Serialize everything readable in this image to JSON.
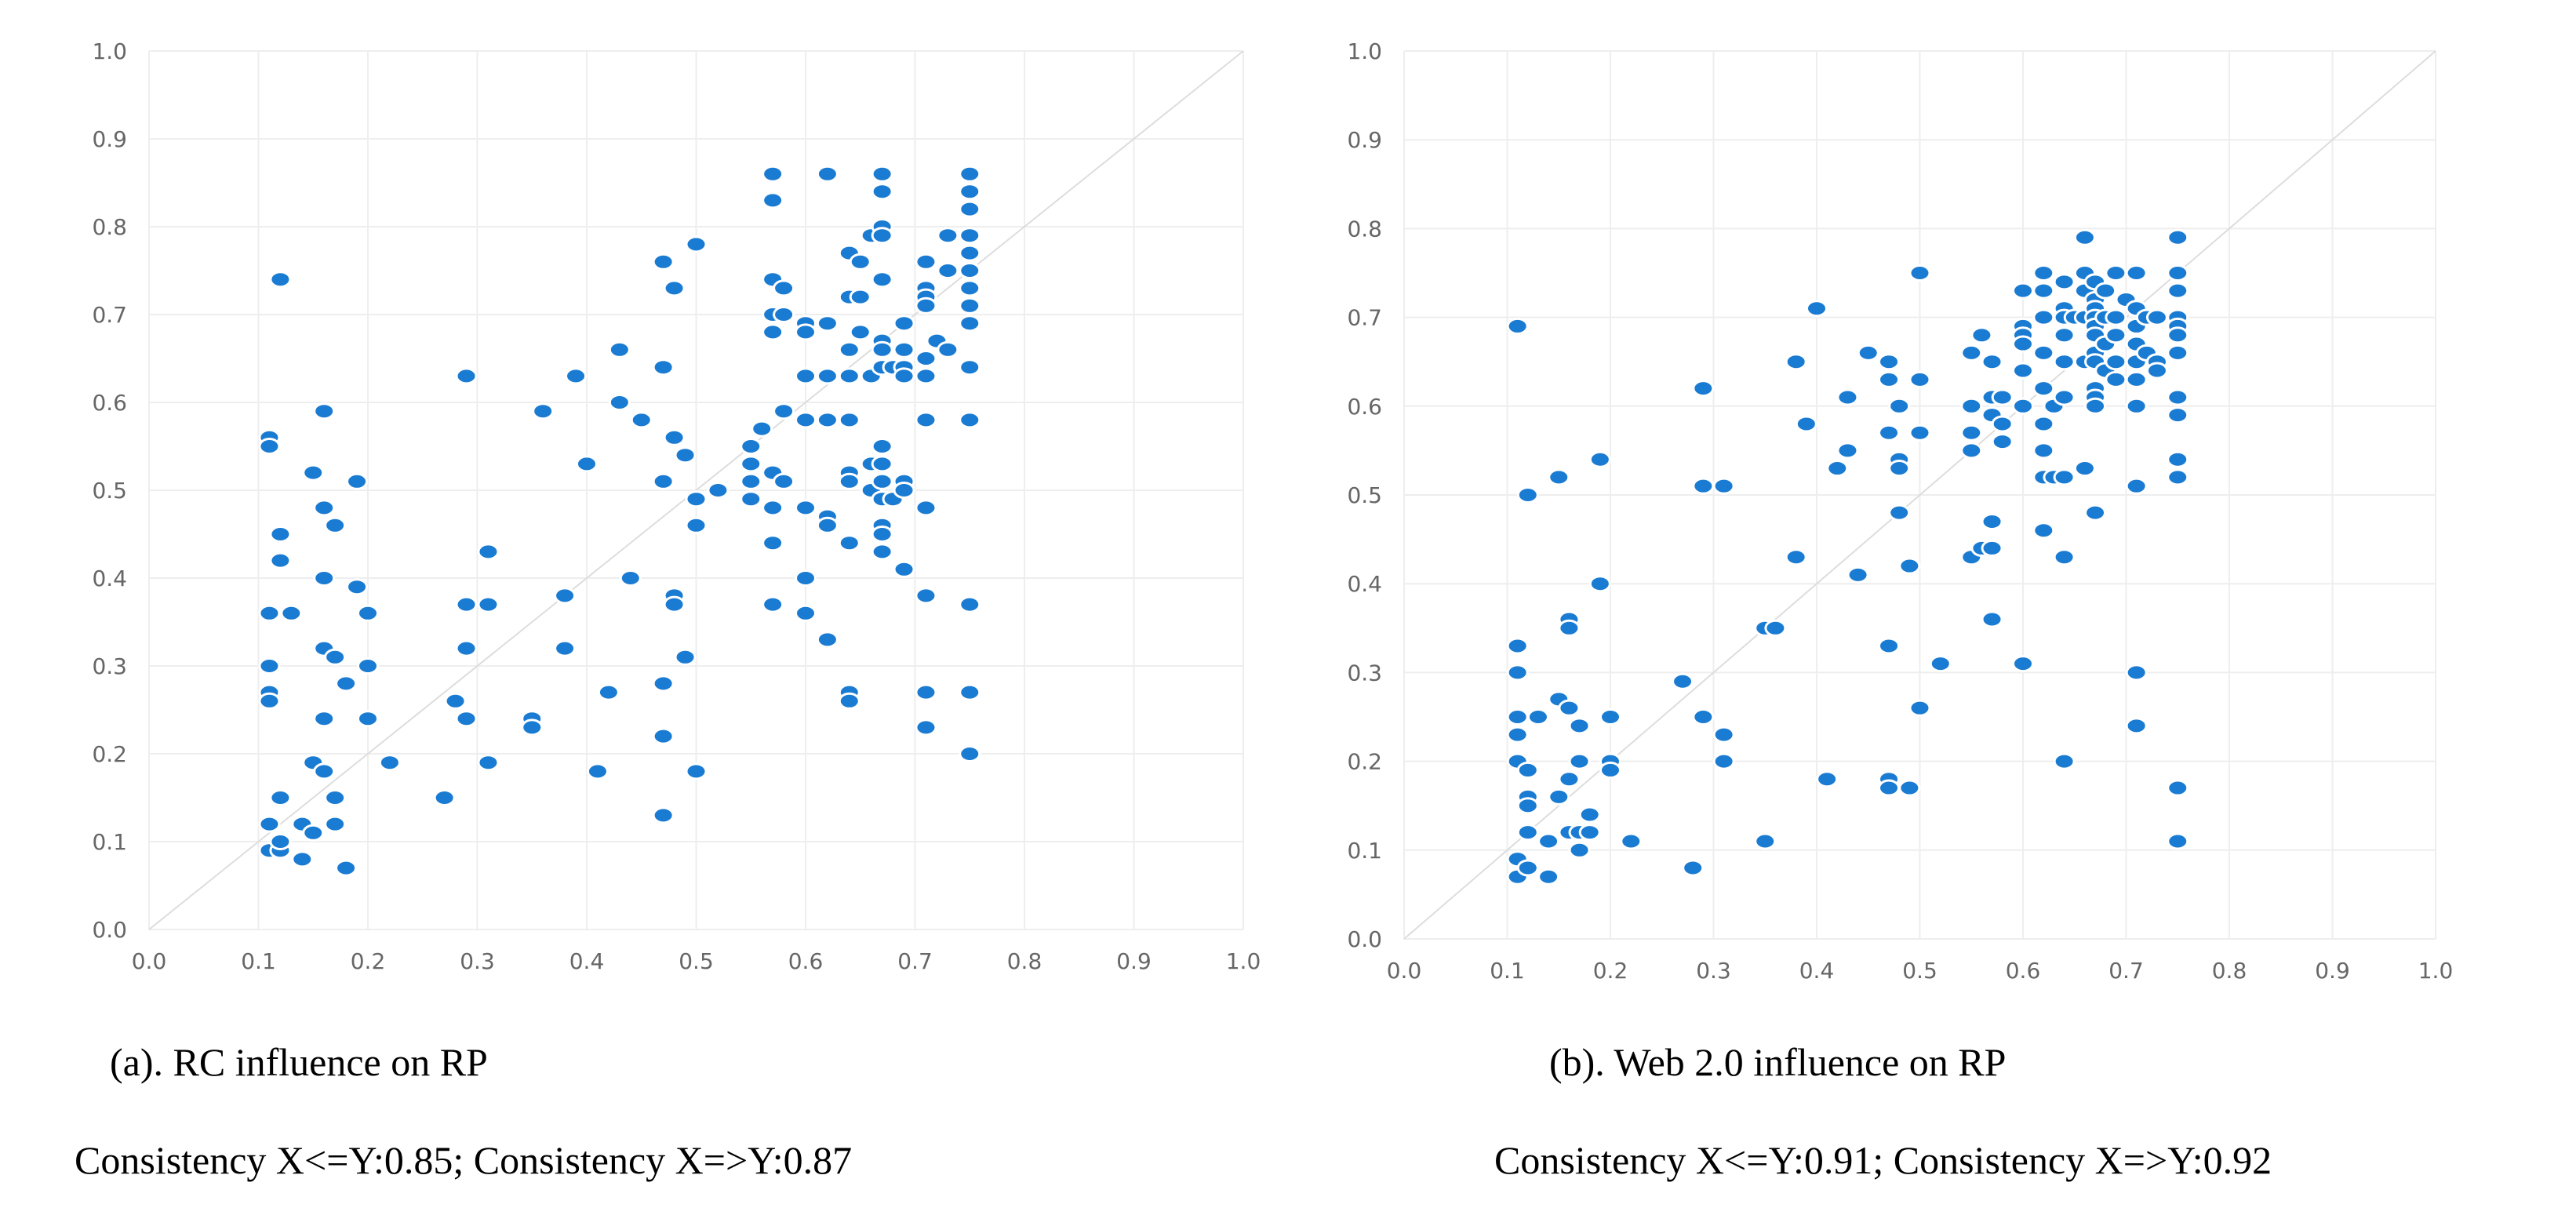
{
  "chart_data": [
    {
      "type": "scatter",
      "title": "(a). RC influence on RP",
      "subtitle": "Consistency X<=Y:0.85; Consistency X=>Y:0.87",
      "xlim": [
        0,
        1
      ],
      "ylim": [
        0,
        1
      ],
      "x_ticks": [
        "0.0",
        "0.1",
        "0.2",
        "0.3",
        "0.4",
        "0.5",
        "0.6",
        "0.7",
        "0.8",
        "0.9",
        "1.0"
      ],
      "y_ticks": [
        "0.0",
        "0.1",
        "0.2",
        "0.3",
        "0.4",
        "0.5",
        "0.6",
        "0.7",
        "0.8",
        "0.9",
        "1.0"
      ],
      "grid": true,
      "reference_line": "y = x",
      "color": "#1a7bd2",
      "points": [
        [
          0.11,
          0.56
        ],
        [
          0.11,
          0.55
        ],
        [
          0.12,
          0.74
        ],
        [
          0.11,
          0.36
        ],
        [
          0.11,
          0.3
        ],
        [
          0.11,
          0.27
        ],
        [
          0.11,
          0.26
        ],
        [
          0.11,
          0.12
        ],
        [
          0.11,
          0.09
        ],
        [
          0.12,
          0.09
        ],
        [
          0.12,
          0.1
        ],
        [
          0.12,
          0.15
        ],
        [
          0.12,
          0.45
        ],
        [
          0.12,
          0.42
        ],
        [
          0.13,
          0.36
        ],
        [
          0.14,
          0.12
        ],
        [
          0.14,
          0.08
        ],
        [
          0.15,
          0.52
        ],
        [
          0.15,
          0.19
        ],
        [
          0.15,
          0.11
        ],
        [
          0.16,
          0.59
        ],
        [
          0.16,
          0.48
        ],
        [
          0.16,
          0.4
        ],
        [
          0.16,
          0.32
        ],
        [
          0.16,
          0.24
        ],
        [
          0.16,
          0.18
        ],
        [
          0.17,
          0.46
        ],
        [
          0.17,
          0.31
        ],
        [
          0.17,
          0.15
        ],
        [
          0.17,
          0.12
        ],
        [
          0.18,
          0.28
        ],
        [
          0.18,
          0.07
        ],
        [
          0.19,
          0.51
        ],
        [
          0.19,
          0.39
        ],
        [
          0.2,
          0.36
        ],
        [
          0.2,
          0.3
        ],
        [
          0.2,
          0.24
        ],
        [
          0.22,
          0.19
        ],
        [
          0.27,
          0.15
        ],
        [
          0.28,
          0.26
        ],
        [
          0.29,
          0.63
        ],
        [
          0.29,
          0.37
        ],
        [
          0.29,
          0.32
        ],
        [
          0.29,
          0.24
        ],
        [
          0.31,
          0.43
        ],
        [
          0.31,
          0.37
        ],
        [
          0.31,
          0.19
        ],
        [
          0.35,
          0.24
        ],
        [
          0.35,
          0.23
        ],
        [
          0.36,
          0.59
        ],
        [
          0.38,
          0.38
        ],
        [
          0.38,
          0.32
        ],
        [
          0.39,
          0.63
        ],
        [
          0.4,
          0.53
        ],
        [
          0.41,
          0.18
        ],
        [
          0.42,
          0.27
        ],
        [
          0.43,
          0.66
        ],
        [
          0.43,
          0.6
        ],
        [
          0.44,
          0.4
        ],
        [
          0.45,
          0.58
        ],
        [
          0.47,
          0.76
        ],
        [
          0.47,
          0.64
        ],
        [
          0.47,
          0.51
        ],
        [
          0.47,
          0.28
        ],
        [
          0.47,
          0.22
        ],
        [
          0.47,
          0.13
        ],
        [
          0.48,
          0.73
        ],
        [
          0.48,
          0.56
        ],
        [
          0.48,
          0.38
        ],
        [
          0.48,
          0.37
        ],
        [
          0.49,
          0.54
        ],
        [
          0.49,
          0.31
        ],
        [
          0.5,
          0.78
        ],
        [
          0.5,
          0.49
        ],
        [
          0.5,
          0.46
        ],
        [
          0.5,
          0.18
        ],
        [
          0.52,
          0.5
        ],
        [
          0.55,
          0.55
        ],
        [
          0.55,
          0.53
        ],
        [
          0.55,
          0.51
        ],
        [
          0.55,
          0.49
        ],
        [
          0.56,
          0.57
        ],
        [
          0.57,
          0.86
        ],
        [
          0.57,
          0.83
        ],
        [
          0.57,
          0.74
        ],
        [
          0.57,
          0.7
        ],
        [
          0.57,
          0.68
        ],
        [
          0.57,
          0.52
        ],
        [
          0.57,
          0.48
        ],
        [
          0.57,
          0.44
        ],
        [
          0.57,
          0.37
        ],
        [
          0.58,
          0.73
        ],
        [
          0.58,
          0.7
        ],
        [
          0.58,
          0.59
        ],
        [
          0.58,
          0.51
        ],
        [
          0.6,
          0.69
        ],
        [
          0.6,
          0.68
        ],
        [
          0.6,
          0.63
        ],
        [
          0.6,
          0.58
        ],
        [
          0.6,
          0.48
        ],
        [
          0.6,
          0.4
        ],
        [
          0.6,
          0.36
        ],
        [
          0.62,
          0.86
        ],
        [
          0.62,
          0.69
        ],
        [
          0.62,
          0.63
        ],
        [
          0.62,
          0.58
        ],
        [
          0.62,
          0.47
        ],
        [
          0.62,
          0.46
        ],
        [
          0.62,
          0.33
        ],
        [
          0.64,
          0.77
        ],
        [
          0.64,
          0.72
        ],
        [
          0.64,
          0.66
        ],
        [
          0.64,
          0.63
        ],
        [
          0.64,
          0.58
        ],
        [
          0.64,
          0.52
        ],
        [
          0.64,
          0.51
        ],
        [
          0.64,
          0.44
        ],
        [
          0.64,
          0.27
        ],
        [
          0.64,
          0.26
        ],
        [
          0.65,
          0.76
        ],
        [
          0.65,
          0.72
        ],
        [
          0.65,
          0.68
        ],
        [
          0.66,
          0.79
        ],
        [
          0.66,
          0.63
        ],
        [
          0.66,
          0.53
        ],
        [
          0.66,
          0.5
        ],
        [
          0.67,
          0.86
        ],
        [
          0.67,
          0.84
        ],
        [
          0.67,
          0.8
        ],
        [
          0.67,
          0.79
        ],
        [
          0.67,
          0.74
        ],
        [
          0.67,
          0.67
        ],
        [
          0.67,
          0.66
        ],
        [
          0.67,
          0.64
        ],
        [
          0.67,
          0.55
        ],
        [
          0.67,
          0.53
        ],
        [
          0.67,
          0.51
        ],
        [
          0.67,
          0.49
        ],
        [
          0.67,
          0.46
        ],
        [
          0.67,
          0.45
        ],
        [
          0.67,
          0.43
        ],
        [
          0.68,
          0.64
        ],
        [
          0.68,
          0.49
        ],
        [
          0.69,
          0.69
        ],
        [
          0.69,
          0.66
        ],
        [
          0.69,
          0.64
        ],
        [
          0.69,
          0.63
        ],
        [
          0.69,
          0.51
        ],
        [
          0.69,
          0.5
        ],
        [
          0.69,
          0.41
        ],
        [
          0.71,
          0.76
        ],
        [
          0.71,
          0.73
        ],
        [
          0.71,
          0.72
        ],
        [
          0.71,
          0.71
        ],
        [
          0.71,
          0.65
        ],
        [
          0.71,
          0.63
        ],
        [
          0.71,
          0.58
        ],
        [
          0.71,
          0.48
        ],
        [
          0.71,
          0.38
        ],
        [
          0.71,
          0.27
        ],
        [
          0.71,
          0.23
        ],
        [
          0.72,
          0.67
        ],
        [
          0.73,
          0.79
        ],
        [
          0.73,
          0.75
        ],
        [
          0.73,
          0.66
        ],
        [
          0.75,
          0.86
        ],
        [
          0.75,
          0.84
        ],
        [
          0.75,
          0.82
        ],
        [
          0.75,
          0.79
        ],
        [
          0.75,
          0.77
        ],
        [
          0.75,
          0.75
        ],
        [
          0.75,
          0.73
        ],
        [
          0.75,
          0.71
        ],
        [
          0.75,
          0.69
        ],
        [
          0.75,
          0.64
        ],
        [
          0.75,
          0.58
        ],
        [
          0.75,
          0.37
        ],
        [
          0.75,
          0.27
        ],
        [
          0.75,
          0.2
        ]
      ]
    },
    {
      "type": "scatter",
      "title": "(b). Web 2.0 influence on RP",
      "subtitle": "Consistency X<=Y:0.91; Consistency X=>Y:0.92",
      "xlim": [
        0,
        1
      ],
      "ylim": [
        0,
        1
      ],
      "x_ticks": [
        "0.0",
        "0.1",
        "0.2",
        "0.3",
        "0.4",
        "0.5",
        "0.6",
        "0.7",
        "0.8",
        "0.9",
        "1.0"
      ],
      "y_ticks": [
        "0.0",
        "0.1",
        "0.2",
        "0.3",
        "0.4",
        "0.5",
        "0.6",
        "0.7",
        "0.8",
        "0.9",
        "1.0"
      ],
      "grid": true,
      "reference_line": "y = x",
      "color": "#1a7bd2",
      "points": [
        [
          0.11,
          0.69
        ],
        [
          0.11,
          0.33
        ],
        [
          0.11,
          0.3
        ],
        [
          0.11,
          0.25
        ],
        [
          0.11,
          0.23
        ],
        [
          0.11,
          0.2
        ],
        [
          0.11,
          0.09
        ],
        [
          0.11,
          0.07
        ],
        [
          0.12,
          0.5
        ],
        [
          0.12,
          0.19
        ],
        [
          0.12,
          0.16
        ],
        [
          0.12,
          0.15
        ],
        [
          0.12,
          0.12
        ],
        [
          0.12,
          0.08
        ],
        [
          0.13,
          0.25
        ],
        [
          0.14,
          0.11
        ],
        [
          0.14,
          0.07
        ],
        [
          0.15,
          0.52
        ],
        [
          0.15,
          0.27
        ],
        [
          0.15,
          0.16
        ],
        [
          0.16,
          0.36
        ],
        [
          0.16,
          0.35
        ],
        [
          0.16,
          0.26
        ],
        [
          0.16,
          0.18
        ],
        [
          0.16,
          0.12
        ],
        [
          0.17,
          0.24
        ],
        [
          0.17,
          0.2
        ],
        [
          0.17,
          0.12
        ],
        [
          0.17,
          0.1
        ],
        [
          0.18,
          0.14
        ],
        [
          0.18,
          0.12
        ],
        [
          0.19,
          0.54
        ],
        [
          0.19,
          0.4
        ],
        [
          0.2,
          0.25
        ],
        [
          0.2,
          0.2
        ],
        [
          0.2,
          0.19
        ],
        [
          0.22,
          0.11
        ],
        [
          0.27,
          0.29
        ],
        [
          0.28,
          0.08
        ],
        [
          0.29,
          0.62
        ],
        [
          0.29,
          0.51
        ],
        [
          0.29,
          0.25
        ],
        [
          0.31,
          0.51
        ],
        [
          0.31,
          0.23
        ],
        [
          0.31,
          0.2
        ],
        [
          0.35,
          0.35
        ],
        [
          0.35,
          0.11
        ],
        [
          0.36,
          0.35
        ],
        [
          0.38,
          0.65
        ],
        [
          0.38,
          0.43
        ],
        [
          0.39,
          0.58
        ],
        [
          0.4,
          0.71
        ],
        [
          0.41,
          0.18
        ],
        [
          0.42,
          0.53
        ],
        [
          0.43,
          0.61
        ],
        [
          0.43,
          0.55
        ],
        [
          0.44,
          0.41
        ],
        [
          0.45,
          0.66
        ],
        [
          0.47,
          0.65
        ],
        [
          0.47,
          0.63
        ],
        [
          0.47,
          0.57
        ],
        [
          0.47,
          0.33
        ],
        [
          0.47,
          0.18
        ],
        [
          0.47,
          0.17
        ],
        [
          0.48,
          0.6
        ],
        [
          0.48,
          0.54
        ],
        [
          0.48,
          0.53
        ],
        [
          0.48,
          0.48
        ],
        [
          0.49,
          0.42
        ],
        [
          0.49,
          0.17
        ],
        [
          0.5,
          0.75
        ],
        [
          0.5,
          0.63
        ],
        [
          0.5,
          0.57
        ],
        [
          0.5,
          0.26
        ],
        [
          0.52,
          0.31
        ],
        [
          0.55,
          0.66
        ],
        [
          0.55,
          0.6
        ],
        [
          0.55,
          0.57
        ],
        [
          0.55,
          0.55
        ],
        [
          0.55,
          0.43
        ],
        [
          0.56,
          0.68
        ],
        [
          0.56,
          0.44
        ],
        [
          0.57,
          0.65
        ],
        [
          0.57,
          0.61
        ],
        [
          0.57,
          0.59
        ],
        [
          0.57,
          0.47
        ],
        [
          0.57,
          0.44
        ],
        [
          0.57,
          0.36
        ],
        [
          0.58,
          0.61
        ],
        [
          0.58,
          0.58
        ],
        [
          0.58,
          0.56
        ],
        [
          0.6,
          0.73
        ],
        [
          0.6,
          0.69
        ],
        [
          0.6,
          0.68
        ],
        [
          0.6,
          0.67
        ],
        [
          0.6,
          0.64
        ],
        [
          0.6,
          0.6
        ],
        [
          0.6,
          0.31
        ],
        [
          0.62,
          0.75
        ],
        [
          0.62,
          0.73
        ],
        [
          0.62,
          0.7
        ],
        [
          0.62,
          0.66
        ],
        [
          0.62,
          0.62
        ],
        [
          0.62,
          0.58
        ],
        [
          0.62,
          0.55
        ],
        [
          0.62,
          0.52
        ],
        [
          0.62,
          0.46
        ],
        [
          0.63,
          0.6
        ],
        [
          0.63,
          0.52
        ],
        [
          0.64,
          0.74
        ],
        [
          0.64,
          0.71
        ],
        [
          0.64,
          0.7
        ],
        [
          0.64,
          0.68
        ],
        [
          0.64,
          0.65
        ],
        [
          0.64,
          0.61
        ],
        [
          0.64,
          0.52
        ],
        [
          0.64,
          0.43
        ],
        [
          0.64,
          0.2
        ],
        [
          0.65,
          0.7
        ],
        [
          0.66,
          0.79
        ],
        [
          0.66,
          0.75
        ],
        [
          0.66,
          0.73
        ],
        [
          0.66,
          0.7
        ],
        [
          0.66,
          0.65
        ],
        [
          0.66,
          0.53
        ],
        [
          0.67,
          0.74
        ],
        [
          0.67,
          0.72
        ],
        [
          0.67,
          0.71
        ],
        [
          0.67,
          0.7
        ],
        [
          0.67,
          0.69
        ],
        [
          0.67,
          0.68
        ],
        [
          0.67,
          0.66
        ],
        [
          0.67,
          0.65
        ],
        [
          0.67,
          0.62
        ],
        [
          0.67,
          0.61
        ],
        [
          0.67,
          0.6
        ],
        [
          0.67,
          0.48
        ],
        [
          0.68,
          0.73
        ],
        [
          0.68,
          0.7
        ],
        [
          0.68,
          0.67
        ],
        [
          0.68,
          0.64
        ],
        [
          0.69,
          0.75
        ],
        [
          0.69,
          0.7
        ],
        [
          0.69,
          0.68
        ],
        [
          0.69,
          0.65
        ],
        [
          0.69,
          0.63
        ],
        [
          0.7,
          0.72
        ],
        [
          0.71,
          0.75
        ],
        [
          0.71,
          0.71
        ],
        [
          0.71,
          0.69
        ],
        [
          0.71,
          0.67
        ],
        [
          0.71,
          0.65
        ],
        [
          0.71,
          0.63
        ],
        [
          0.71,
          0.6
        ],
        [
          0.71,
          0.51
        ],
        [
          0.71,
          0.3
        ],
        [
          0.71,
          0.24
        ],
        [
          0.72,
          0.7
        ],
        [
          0.72,
          0.66
        ],
        [
          0.73,
          0.7
        ],
        [
          0.73,
          0.65
        ],
        [
          0.73,
          0.64
        ],
        [
          0.75,
          0.79
        ],
        [
          0.75,
          0.75
        ],
        [
          0.75,
          0.73
        ],
        [
          0.75,
          0.7
        ],
        [
          0.75,
          0.69
        ],
        [
          0.75,
          0.68
        ],
        [
          0.75,
          0.66
        ],
        [
          0.75,
          0.61
        ],
        [
          0.75,
          0.59
        ],
        [
          0.75,
          0.54
        ],
        [
          0.75,
          0.52
        ],
        [
          0.75,
          0.17
        ],
        [
          0.75,
          0.11
        ]
      ]
    }
  ]
}
